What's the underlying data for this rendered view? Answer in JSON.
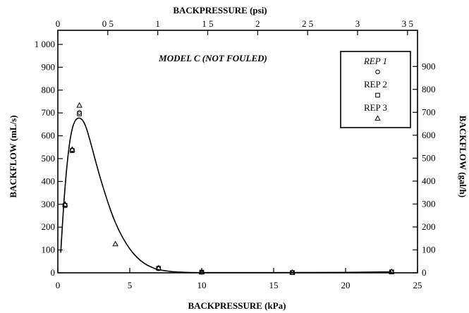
{
  "chart_data": {
    "type": "scatter",
    "title": "MODEL C (NOT FOULED)",
    "xlabel": "BACKPRESSURE (kPa)",
    "ylabel": "BACKFLOW (mL/s)",
    "x2label": "BACKPRESSURE (psi)",
    "y2label": "BACKFLOW (gal/h)",
    "xlim": [
      0,
      25
    ],
    "ylim": [
      0,
      1000
    ],
    "x2lim": [
      0,
      3.6
    ],
    "y2lim": [
      0,
      950
    ],
    "x_ticks": [
      0,
      5,
      10,
      15,
      20,
      25
    ],
    "y_ticks": [
      0,
      100,
      200,
      300,
      400,
      500,
      600,
      700,
      800,
      900,
      1000
    ],
    "y_tick_labels": [
      "0",
      "100",
      "200",
      "300",
      "400",
      "500",
      "600",
      "700",
      "800",
      "900",
      "1 000"
    ],
    "x2_ticks": [
      0,
      0.5,
      1,
      1.5,
      2,
      2.5,
      3,
      3.5
    ],
    "x2_tick_labels": [
      "0",
      "0 5",
      "1",
      "1 5",
      "2",
      "2 5",
      "3",
      "3 5"
    ],
    "y2_ticks": [
      0,
      100,
      200,
      300,
      400,
      500,
      600,
      700,
      800,
      900
    ],
    "legend_position": "top-right",
    "series": [
      {
        "name": "REP 1",
        "marker": "circle",
        "points": [
          [
            0.5,
            297
          ],
          [
            1.0,
            538
          ],
          [
            1.5,
            702
          ],
          [
            7.0,
            18
          ],
          [
            10.0,
            3
          ],
          [
            16.3,
            1
          ],
          [
            23.2,
            4
          ]
        ]
      },
      {
        "name": "REP 2",
        "marker": "square",
        "points": [
          [
            0.5,
            295
          ],
          [
            1.0,
            535
          ],
          [
            1.5,
            696
          ],
          [
            7.0,
            20
          ],
          [
            10.0,
            3
          ],
          [
            16.3,
            1
          ],
          [
            23.2,
            4
          ]
        ]
      },
      {
        "name": "REP 3",
        "marker": "triangle",
        "points": [
          [
            0.5,
            300
          ],
          [
            1.0,
            540
          ],
          [
            1.5,
            733
          ],
          [
            4.0,
            126
          ],
          [
            7.0,
            21
          ],
          [
            10.0,
            3
          ],
          [
            16.3,
            2
          ],
          [
            23.2,
            5
          ]
        ]
      }
    ],
    "fit_curve": {
      "x": [
        0.2,
        0.4,
        0.6,
        0.8,
        1.0,
        1.2,
        1.4,
        1.6,
        1.8,
        2.0,
        2.3,
        2.6,
        3.0,
        3.5,
        4.0,
        4.5,
        5.0,
        5.5,
        6.0,
        6.5,
        7.0,
        8.0,
        9.0,
        10.0,
        12.0,
        15.0,
        20.0,
        23.2
      ],
      "y": [
        88,
        290,
        445,
        560,
        630,
        665,
        677,
        675,
        660,
        630,
        565,
        495,
        405,
        305,
        220,
        155,
        105,
        68,
        42,
        25,
        14,
        5,
        2,
        1,
        1,
        1,
        2,
        4
      ]
    }
  }
}
